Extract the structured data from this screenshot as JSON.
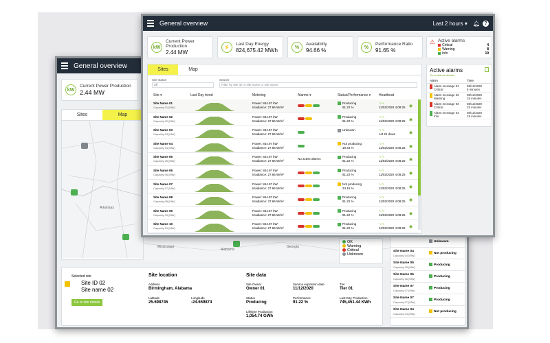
{
  "colors": {
    "topbar": "#232d3a",
    "accent_green": "#8cc63f",
    "highlight_yellow": "#f4f24a",
    "critical": "#d9342b",
    "warning": "#f2c200",
    "ok": "#4caf50",
    "unknown": "#8a8f94"
  },
  "back": {
    "title": "General overview",
    "kpi": {
      "label": "Current Power Production",
      "value": "2.44 MW",
      "icon": "kw-icon"
    },
    "tabs": [
      "Sites",
      "Map"
    ],
    "map": {
      "legend": [
        "OK",
        "Warning",
        "Critical",
        "Unknown"
      ],
      "places": [
        "Arkansas",
        "Mississippi",
        "Alabama",
        "Georgia"
      ]
    },
    "selected": {
      "label": "Selected site",
      "id": "Site ID 02",
      "name": "Site name 02",
      "button": "Go to site details"
    },
    "location": {
      "heading": "Site location",
      "address_label": "Address",
      "address": "Birmingham, Alabama",
      "lat_label": "Latitude",
      "lat": "25.698745",
      "lon_label": "Longitude",
      "lon": "-24.659874"
    },
    "sitedata": {
      "heading": "Site data",
      "owner_label": "Site Owner",
      "owner": "Owner 01",
      "expiry_label": "Service expiration date",
      "expiry": "11/12/2020",
      "tier_label": "Tier",
      "tier": "Tier 01",
      "status_label": "Status",
      "status": "Producing",
      "perf_label": "Performance",
      "perf": "91.22 %",
      "lastday_label": "Last Day Production",
      "lastday": "745,451.44 KWh",
      "lifetime_label": "Lifetime Production",
      "lifetime": "1,054.74 GWh"
    },
    "sidelist": [
      {
        "name": "",
        "cap": "",
        "status": "Unknown",
        "color": "#8a8f94"
      },
      {
        "name": "Site Name 04",
        "cap": "Capacity 04 [MW]",
        "status": "Not producing",
        "color": "#f2c200"
      },
      {
        "name": "Site Name 05",
        "cap": "Capacity 05 [MW]",
        "status": "Producing",
        "color": "#4caf50"
      },
      {
        "name": "Site Name 06",
        "cap": "Capacity 06 [MW]",
        "status": "Producing",
        "color": "#4caf50"
      },
      {
        "name": "Site Name 07",
        "cap": "Capacity 07 [MW]",
        "status": "Producing",
        "color": "#4caf50"
      },
      {
        "name": "Site Name 07",
        "cap": "Capacity 07 [MW]",
        "status": "Producing",
        "color": "#4caf50"
      },
      {
        "name": "Site Name 04",
        "cap": "Capacity 04 [MW]",
        "status": "Not producing",
        "color": "#f2c200"
      }
    ]
  },
  "front": {
    "title": "General overview",
    "time_range": "Last 2 hours",
    "kpis": [
      {
        "label": "Current Power Production",
        "value": "2.44 MW",
        "icon": "kw-icon"
      },
      {
        "label": "Last Day Energy",
        "value": "824,675.42 MWh",
        "icon": "bolt-icon"
      },
      {
        "label": "Availability",
        "value": "94.66 %",
        "icon": "percent-icon"
      },
      {
        "label": "Performance Ratio",
        "value": "91.65 %",
        "icon": "percent-icon"
      }
    ],
    "active_alarms_kpi": {
      "label": "Active alarms",
      "rows": [
        {
          "name": "Critical",
          "count": "4",
          "color": "#d9342b"
        },
        {
          "name": "Warning",
          "count": "8",
          "color": "#f2c200"
        },
        {
          "name": "Info",
          "count": "19",
          "color": "#4caf50"
        }
      ]
    },
    "tabs": [
      "Sites",
      "Map"
    ],
    "filter": {
      "status_label": "Site status",
      "status_value": "All",
      "search_label": "Search",
      "search_placeholder": "Filter by site ID or site name or site owner"
    },
    "columns": [
      "Site",
      "Last Day trend",
      "Metering",
      "Alarms",
      "Status/Performance",
      "Heartbeat"
    ],
    "rows": [
      {
        "name": "Site Name 01",
        "cap": "Capacity 01 [MW]",
        "power": "Power: 844.97 kW",
        "irr": "Irradiance: 27.66 W/m²",
        "alarms": "pills",
        "status": "Producing",
        "perf": "91.22 %",
        "scolor": "#4caf50",
        "hb": "11/02/2020 4:08:25"
      },
      {
        "name": "Site Name 02",
        "cap": "Capacity 02 [MW]",
        "power": "Power: 844.97 kW",
        "irr": "Irradiance: 27.66 W/m²",
        "alarms": "pills2",
        "status": "Producing",
        "perf": "91.22 %",
        "scolor": "#4caf50",
        "hb": "11/02/2020 4:08:25"
      },
      {
        "name": "Site Name 03",
        "cap": "Capacity 03 [MW]",
        "power": "Power: 844.97 kW",
        "irr": "Irradiance: 27.66 W/m²",
        "alarms": "pills3",
        "status": "Unknown",
        "perf": "",
        "scolor": "#8a8f94",
        "hb": "Lst 2h down"
      },
      {
        "name": "Site Name 04",
        "cap": "Capacity 04 [MW]",
        "power": "Power: 844.97 kW",
        "irr": "Irradiance: 27.66 W/m²",
        "alarms": "pills4",
        "status": "Not producing",
        "perf": "19.44 %",
        "scolor": "#f2c200",
        "hb": "11/02/2020 4:08:25"
      },
      {
        "name": "Site Name 05",
        "cap": "Capacity 05 [MW]",
        "power": "Power: 844.97 kW",
        "irr": "Irradiance: 27.66 W/m²",
        "alarms": "none",
        "alarms_text": "No active alarms",
        "status": "Producing",
        "perf": "91.22 %",
        "scolor": "#4caf50",
        "hb": "11/02/2020 4:08:25"
      },
      {
        "name": "Site Name 06",
        "cap": "Capacity 06 [MW]",
        "power": "Power: 844.97 kW",
        "irr": "Irradiance: 27.66 W/m²",
        "alarms": "pills",
        "status": "Producing",
        "perf": "91.22 %",
        "scolor": "#4caf50",
        "hb": "11/02/2020 4:08:25"
      },
      {
        "name": "Site Name 07",
        "cap": "Capacity 07 [MW]",
        "power": "Power: 844.97 kW",
        "irr": "Irradiance: 27.66 W/m²",
        "alarms": "pills",
        "status": "Not producing",
        "perf": "24.15 %",
        "scolor": "#f2c200",
        "hb": "11/02/2020 4:08:25"
      },
      {
        "name": "Site Name 08",
        "cap": "Capacity 08 [MW]",
        "power": "Power: 844.97 kW",
        "irr": "Irradiance: 27.66 W/m²",
        "alarms": "pills",
        "status": "Producing",
        "perf": "91.22 %",
        "scolor": "#4caf50",
        "hb": "11/02/2020 4:08:25"
      },
      {
        "name": "Site Name 09",
        "cap": "Capacity 09 [MW]",
        "power": "Power: 844.97 kW",
        "irr": "Irradiance: 27.66 W/m²",
        "alarms": "pills",
        "status": "Producing",
        "perf": "91.22 %",
        "scolor": "#4caf50",
        "hb": "11/02/2020 4:08:25"
      },
      {
        "name": "Site Name 10",
        "cap": "Capacity 10 [MW]",
        "power": "Power: 844.97 kW",
        "irr": "Irradiance: 27.66 W/m²",
        "alarms": "pills",
        "status": "Producing",
        "perf": "91.22 %",
        "scolor": "#4caf50",
        "hb": "11/02/2020 4:08:25"
      }
    ],
    "alarm_panel": {
      "title": "Active alarms",
      "link": "Go to alarms details",
      "col_alarm": "Alarm",
      "col_time": "Time",
      "items": [
        {
          "msg": "Alarm message 01",
          "level": "Critical",
          "color": "#d9342b",
          "date": "08/12/2020",
          "ago": "5 minutes"
        },
        {
          "msg": "Alarm message 02",
          "level": "Warning",
          "color": "#f2c200",
          "date": "08/12/2020",
          "ago": "15 minutes"
        },
        {
          "msg": "Alarm message 03",
          "level": "Critical",
          "color": "#d9342b",
          "date": "08/12/2020",
          "ago": "15 minutes"
        },
        {
          "msg": "Alarm message 04",
          "level": "Info",
          "color": "#4caf50",
          "date": "08/12/2020",
          "ago": "15 minutes"
        }
      ]
    }
  }
}
